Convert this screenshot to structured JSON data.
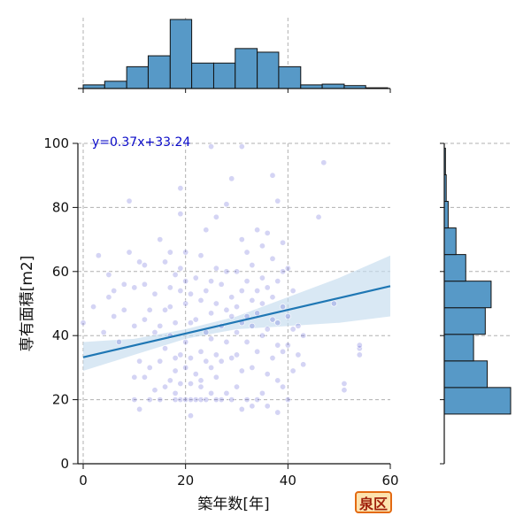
{
  "badge": {
    "label": "泉区"
  },
  "colors": {
    "hist_fill": "#5799c7",
    "hist_edge": "#111111",
    "point": "#3b3bcc",
    "regression": "#1f77b4",
    "band": "#c5dcee",
    "equation": "#0a0ac8"
  },
  "chart_data": {
    "type": "scatter",
    "title": "",
    "xlabel": "築年数[年]",
    "ylabel": "専有面積[m2]",
    "xlim": [
      -1,
      60
    ],
    "ylim": [
      0,
      100
    ],
    "xticks": [
      0,
      20,
      40,
      60
    ],
    "yticks": [
      0,
      20,
      40,
      60,
      80,
      100
    ],
    "grid": true,
    "annotation": "y=0.37x+33.24",
    "regression": {
      "slope": 0.37,
      "intercept": 33.24,
      "x_range": [
        0,
        60
      ]
    },
    "confidence_band": {
      "x": [
        0,
        10,
        20,
        30,
        40,
        50,
        60
      ],
      "lower": [
        29,
        34,
        39,
        42,
        43,
        44,
        46
      ],
      "upper": [
        38,
        39,
        42,
        46,
        52,
        58,
        65
      ]
    },
    "marginal_x_hist": {
      "bin_edges": [
        0,
        4.2,
        8.5,
        12.7,
        17,
        21.2,
        25.5,
        29.7,
        34,
        38.2,
        42.5,
        46.7,
        51,
        55.2,
        59.5
      ],
      "counts": [
        1,
        2,
        6,
        9,
        19,
        7,
        7,
        11,
        10,
        6,
        1,
        1.2,
        0.8,
        0.2
      ]
    },
    "marginal_y_hist": {
      "bin_edges": [
        15.5,
        23.8,
        32.1,
        40.4,
        48.7,
        57,
        65.3,
        73.6,
        81.9,
        90.2,
        98.5
      ],
      "counts": [
        34,
        22,
        15,
        21,
        24,
        11,
        6,
        2,
        1,
        0.6
      ]
    },
    "points": [
      [
        0,
        44
      ],
      [
        2,
        49
      ],
      [
        3,
        65
      ],
      [
        4,
        41
      ],
      [
        5,
        52
      ],
      [
        5,
        59
      ],
      [
        6,
        46
      ],
      [
        6,
        54
      ],
      [
        7,
        38
      ],
      [
        8,
        48
      ],
      [
        8,
        56
      ],
      [
        9,
        66
      ],
      [
        9,
        82
      ],
      [
        10,
        20
      ],
      [
        10,
        27
      ],
      [
        10,
        43
      ],
      [
        10,
        55
      ],
      [
        11,
        17
      ],
      [
        11,
        32
      ],
      [
        11,
        63
      ],
      [
        12,
        27
      ],
      [
        12,
        45
      ],
      [
        12,
        56
      ],
      [
        12,
        62
      ],
      [
        13,
        20
      ],
      [
        13,
        30
      ],
      [
        13,
        48
      ],
      [
        14,
        23
      ],
      [
        14,
        41
      ],
      [
        14,
        53
      ],
      [
        15,
        20
      ],
      [
        15,
        32
      ],
      [
        15,
        43
      ],
      [
        15,
        70
      ],
      [
        16,
        24
      ],
      [
        16,
        36
      ],
      [
        16,
        48
      ],
      [
        16,
        63
      ],
      [
        17,
        26
      ],
      [
        17,
        40
      ],
      [
        17,
        49
      ],
      [
        17,
        55
      ],
      [
        17,
        66
      ],
      [
        18,
        20
      ],
      [
        18,
        22
      ],
      [
        18,
        29
      ],
      [
        18,
        33
      ],
      [
        18,
        44
      ],
      [
        18,
        59
      ],
      [
        19,
        20
      ],
      [
        19,
        25
      ],
      [
        19,
        34
      ],
      [
        19,
        54
      ],
      [
        19,
        61
      ],
      [
        19,
        78
      ],
      [
        19,
        86
      ],
      [
        20,
        20
      ],
      [
        20,
        30
      ],
      [
        20,
        38
      ],
      [
        20,
        50
      ],
      [
        20,
        57
      ],
      [
        20,
        66
      ],
      [
        21,
        15
      ],
      [
        21,
        20
      ],
      [
        21,
        25
      ],
      [
        21,
        33
      ],
      [
        21,
        44
      ],
      [
        21,
        53
      ],
      [
        22,
        20
      ],
      [
        22,
        28
      ],
      [
        22,
        45
      ],
      [
        22,
        58
      ],
      [
        23,
        20
      ],
      [
        23,
        24
      ],
      [
        23,
        26
      ],
      [
        23,
        35
      ],
      [
        23,
        51
      ],
      [
        23,
        65
      ],
      [
        24,
        20
      ],
      [
        24,
        32
      ],
      [
        24,
        41
      ],
      [
        24,
        54
      ],
      [
        24,
        73
      ],
      [
        25,
        22
      ],
      [
        25,
        30
      ],
      [
        25,
        39
      ],
      [
        25,
        47
      ],
      [
        25,
        57
      ],
      [
        25,
        99
      ],
      [
        26,
        20
      ],
      [
        26,
        27
      ],
      [
        26,
        34
      ],
      [
        26,
        50
      ],
      [
        26,
        61
      ],
      [
        26,
        77
      ],
      [
        27,
        20
      ],
      [
        27,
        32
      ],
      [
        27,
        43
      ],
      [
        27,
        56
      ],
      [
        28,
        22
      ],
      [
        28,
        38
      ],
      [
        28,
        48
      ],
      [
        28,
        60
      ],
      [
        28,
        81
      ],
      [
        29,
        20
      ],
      [
        29,
        33
      ],
      [
        29,
        46
      ],
      [
        29,
        52
      ],
      [
        29,
        89
      ],
      [
        30,
        24
      ],
      [
        30,
        34
      ],
      [
        30,
        41
      ],
      [
        30,
        49
      ],
      [
        30,
        60
      ],
      [
        31,
        17
      ],
      [
        31,
        29
      ],
      [
        31,
        44
      ],
      [
        31,
        54
      ],
      [
        31,
        70
      ],
      [
        31,
        99
      ],
      [
        32,
        20
      ],
      [
        32,
        38
      ],
      [
        32,
        46
      ],
      [
        32,
        57
      ],
      [
        32,
        66
      ],
      [
        33,
        18
      ],
      [
        33,
        30
      ],
      [
        33,
        43
      ],
      [
        33,
        51
      ],
      [
        33,
        62
      ],
      [
        34,
        20
      ],
      [
        34,
        35
      ],
      [
        34,
        47
      ],
      [
        34,
        54
      ],
      [
        34,
        73
      ],
      [
        35,
        22
      ],
      [
        35,
        40
      ],
      [
        35,
        50
      ],
      [
        35,
        58
      ],
      [
        35,
        68
      ],
      [
        36,
        18
      ],
      [
        36,
        28
      ],
      [
        36,
        42
      ],
      [
        36,
        55
      ],
      [
        36,
        72
      ],
      [
        37,
        33
      ],
      [
        37,
        45
      ],
      [
        37,
        52
      ],
      [
        37,
        64
      ],
      [
        37,
        90
      ],
      [
        38,
        16
      ],
      [
        38,
        26
      ],
      [
        38,
        37
      ],
      [
        38,
        44
      ],
      [
        38,
        57
      ],
      [
        38,
        82
      ],
      [
        39,
        24
      ],
      [
        39,
        35
      ],
      [
        39,
        49
      ],
      [
        39,
        60
      ],
      [
        39,
        69
      ],
      [
        40,
        20
      ],
      [
        40,
        37
      ],
      [
        40,
        46
      ],
      [
        40,
        61
      ],
      [
        41,
        29
      ],
      [
        41,
        42
      ],
      [
        41,
        54
      ],
      [
        42,
        34
      ],
      [
        42,
        43
      ],
      [
        43,
        31
      ],
      [
        43,
        40
      ],
      [
        46,
        77
      ],
      [
        47,
        94
      ],
      [
        49,
        50
      ],
      [
        51,
        23
      ],
      [
        51,
        25
      ],
      [
        54,
        34
      ],
      [
        54,
        36
      ],
      [
        54,
        37
      ]
    ]
  }
}
